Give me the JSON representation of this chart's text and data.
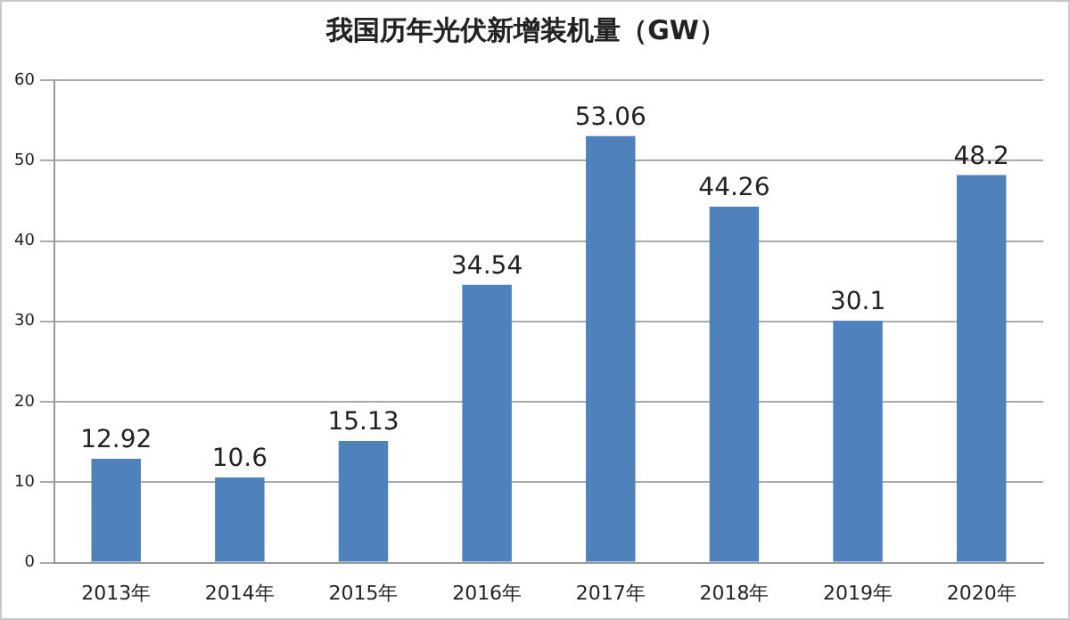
{
  "chart_data": {
    "type": "bar",
    "title": "我国历年光伏新增装机量（GW）",
    "categories": [
      "2013年",
      "2014年",
      "2015年",
      "2016年",
      "2017年",
      "2018年",
      "2019年",
      "2020年"
    ],
    "values": [
      12.92,
      10.6,
      15.13,
      34.54,
      53.06,
      44.26,
      30.1,
      48.2
    ],
    "color": "#4f81bd",
    "ylim": [
      0,
      60
    ],
    "yticks": [
      0,
      10,
      20,
      30,
      40,
      50,
      60
    ],
    "grid": "y",
    "data_labels": true,
    "legend": false
  }
}
